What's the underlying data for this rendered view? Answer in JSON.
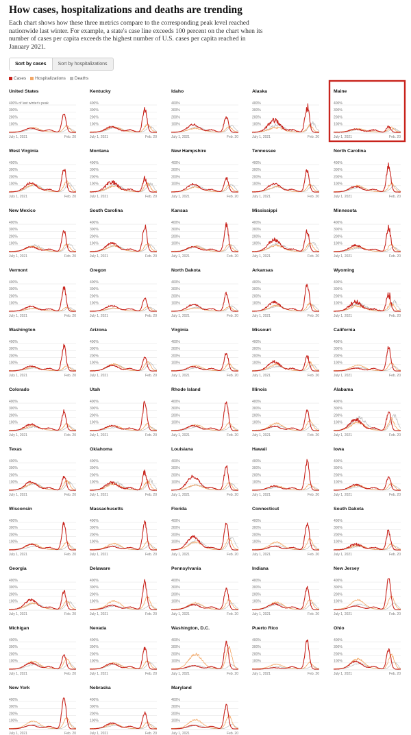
{
  "title": "How cases, hospitalizations and deaths are trending",
  "intro": "Each chart shows how these three metrics compare to the corresponding peak level reached nationwide last winter. For example, a state's case line exceeds 100 percent on the chart when its number of cases per capita exceeds the highest number of U.S. cases per capita reached in January 2021.",
  "sort": {
    "options": [
      "Sort by cases",
      "Sort by hospitalizations"
    ],
    "selected": "Sort by cases"
  },
  "legend": [
    {
      "label": "Cases",
      "color": "#c8231c"
    },
    {
      "label": "Hospitalizations",
      "color": "#f2a766"
    },
    {
      "label": "Deaths",
      "color": "#bbbbbb"
    }
  ],
  "highlight_color": "#c8231c",
  "chart_data": {
    "type": "line",
    "x_start_label": "July 1, 2021",
    "x_end_label": "Feb. 20",
    "y_tick_labels": [
      "400% of last winter's peak",
      "400%",
      "300%",
      "200%",
      "100%"
    ],
    "y_ticks": [
      100,
      200,
      300,
      400
    ],
    "ylim": [
      0,
      450
    ],
    "highlighted_state": "Maine",
    "states": [
      {
        "name": "United States",
        "peak": 270,
        "delta": 60,
        "hosp": 90,
        "deaths": 55,
        "noise": 0.05
      },
      {
        "name": "Kentucky",
        "peak": 330,
        "delta": 80,
        "hosp": 110,
        "deaths": 80,
        "noise": 0.14
      },
      {
        "name": "Idaho",
        "peak": 230,
        "delta": 110,
        "hosp": 75,
        "deaths": 90,
        "noise": 0.12
      },
      {
        "name": "Alaska",
        "peak": 370,
        "delta": 170,
        "hosp": 90,
        "deaths": 130,
        "noise": 0.2
      },
      {
        "name": "Maine",
        "peak": 80,
        "delta": 45,
        "hosp": 60,
        "deaths": 50,
        "noise": 0.2
      },
      {
        "name": "West Virginia",
        "peak": 330,
        "delta": 130,
        "hosp": 140,
        "deaths": 120,
        "noise": 0.12
      },
      {
        "name": "Montana",
        "peak": 190,
        "delta": 140,
        "hosp": 110,
        "deaths": 120,
        "noise": 0.2
      },
      {
        "name": "New Hampshire",
        "peak": 200,
        "delta": 110,
        "hosp": 90,
        "deaths": 100,
        "noise": 0.12
      },
      {
        "name": "Tennessee",
        "peak": 310,
        "delta": 120,
        "hosp": 100,
        "deaths": 90,
        "noise": 0.12
      },
      {
        "name": "North Carolina",
        "peak": 380,
        "delta": 80,
        "hosp": 120,
        "deaths": 80,
        "noise": 0.14
      },
      {
        "name": "New Mexico",
        "peak": 300,
        "delta": 70,
        "hosp": 100,
        "deaths": 110,
        "noise": 0.12
      },
      {
        "name": "South Carolina",
        "peak": 360,
        "delta": 120,
        "hosp": 110,
        "deaths": 100,
        "noise": 0.12
      },
      {
        "name": "Kansas",
        "peak": 390,
        "delta": 70,
        "hosp": 100,
        "deaths": 90,
        "noise": 0.14
      },
      {
        "name": "Mississippi",
        "peak": 280,
        "delta": 170,
        "hosp": 120,
        "deaths": 140,
        "noise": 0.15
      },
      {
        "name": "Minnesota",
        "peak": 330,
        "delta": 90,
        "hosp": 90,
        "deaths": 60,
        "noise": 0.15
      },
      {
        "name": "Vermont",
        "peak": 330,
        "delta": 70,
        "hosp": 50,
        "deaths": 50,
        "noise": 0.12
      },
      {
        "name": "Oregon",
        "peak": 190,
        "delta": 80,
        "hosp": 60,
        "deaths": 50,
        "noise": 0.1
      },
      {
        "name": "North Dakota",
        "peak": 250,
        "delta": 100,
        "hosp": 60,
        "deaths": 70,
        "noise": 0.12
      },
      {
        "name": "Arkansas",
        "peak": 390,
        "delta": 130,
        "hosp": 110,
        "deaths": 90,
        "noise": 0.13
      },
      {
        "name": "Wyoming",
        "peak": 250,
        "delta": 130,
        "hosp": 110,
        "deaths": 130,
        "noise": 0.25
      },
      {
        "name": "Washington",
        "peak": 360,
        "delta": 70,
        "hosp": 70,
        "deaths": 50,
        "noise": 0.12
      },
      {
        "name": "Arizona",
        "peak": 200,
        "delta": 80,
        "hosp": 130,
        "deaths": 110,
        "noise": 0.1
      },
      {
        "name": "Virginia",
        "peak": 260,
        "delta": 60,
        "hosp": 100,
        "deaths": 50,
        "noise": 0.1
      },
      {
        "name": "Missouri",
        "peak": 210,
        "delta": 130,
        "hosp": 120,
        "deaths": 80,
        "noise": 0.15
      },
      {
        "name": "California",
        "peak": 330,
        "delta": 40,
        "hosp": 110,
        "deaths": 60,
        "noise": 0.1
      },
      {
        "name": "Colorado",
        "peak": 270,
        "delta": 90,
        "hosp": 90,
        "deaths": 60,
        "noise": 0.12
      },
      {
        "name": "Utah",
        "peak": 400,
        "delta": 70,
        "hosp": 90,
        "deaths": 50,
        "noise": 0.12
      },
      {
        "name": "Rhode Island",
        "peak": 420,
        "delta": 70,
        "hosp": 110,
        "deaths": 60,
        "noise": 0.1
      },
      {
        "name": "Illinois",
        "peak": 280,
        "delta": 60,
        "hosp": 140,
        "deaths": 80,
        "noise": 0.1
      },
      {
        "name": "Alabama",
        "peak": 270,
        "delta": 160,
        "hosp": 160,
        "deaths": 220,
        "noise": 0.15
      },
      {
        "name": "Texas",
        "peak": 200,
        "delta": 120,
        "hosp": 130,
        "deaths": 110,
        "noise": 0.12
      },
      {
        "name": "Oklahoma",
        "peak": 270,
        "delta": 110,
        "hosp": 120,
        "deaths": 140,
        "noise": 0.2
      },
      {
        "name": "Louisiana",
        "peak": 340,
        "delta": 200,
        "hosp": 100,
        "deaths": 90,
        "noise": 0.12
      },
      {
        "name": "Hawaii",
        "peak": 420,
        "delta": 60,
        "hosp": 80,
        "deaths": 50,
        "noise": 0.12
      },
      {
        "name": "Iowa",
        "peak": 190,
        "delta": 80,
        "hosp": 90,
        "deaths": 60,
        "noise": 0.12
      },
      {
        "name": "Wisconsin",
        "peak": 380,
        "delta": 80,
        "hosp": 110,
        "deaths": 60,
        "noise": 0.1
      },
      {
        "name": "Massachusetts",
        "peak": 390,
        "delta": 50,
        "hosp": 120,
        "deaths": 70,
        "noise": 0.1
      },
      {
        "name": "Florida",
        "peak": 370,
        "delta": 190,
        "hosp": 150,
        "deaths": 170,
        "noise": 0.1
      },
      {
        "name": "Connecticut",
        "peak": 380,
        "delta": 50,
        "hosp": 150,
        "deaths": 70,
        "noise": 0.1
      },
      {
        "name": "South Dakota",
        "peak": 260,
        "delta": 80,
        "hosp": 80,
        "deaths": 60,
        "noise": 0.2
      },
      {
        "name": "Georgia",
        "peak": 260,
        "delta": 140,
        "hosp": 120,
        "deaths": 110,
        "noise": 0.12
      },
      {
        "name": "Delaware",
        "peak": 390,
        "delta": 60,
        "hosp": 170,
        "deaths": 60,
        "noise": 0.1
      },
      {
        "name": "Pennsylvania",
        "peak": 300,
        "delta": 70,
        "hosp": 130,
        "deaths": 90,
        "noise": 0.1
      },
      {
        "name": "Indiana",
        "peak": 320,
        "delta": 80,
        "hosp": 140,
        "deaths": 90,
        "noise": 0.1
      },
      {
        "name": "New Jersey",
        "peak": 450,
        "delta": 50,
        "hosp": 190,
        "deaths": 90,
        "noise": 0.06
      },
      {
        "name": "Michigan",
        "peak": 200,
        "delta": 90,
        "hosp": 150,
        "deaths": 80,
        "noise": 0.1
      },
      {
        "name": "Nevada",
        "peak": 300,
        "delta": 80,
        "hosp": 120,
        "deaths": 90,
        "noise": 0.1
      },
      {
        "name": "Washington, D.C.",
        "peak": 380,
        "delta": 50,
        "hosp": 300,
        "deaths": 60,
        "noise": 0.1
      },
      {
        "name": "Puerto Rico",
        "peak": 400,
        "delta": 20,
        "hosp": 90,
        "deaths": 40,
        "noise": 0.1
      },
      {
        "name": "Ohio",
        "peak": 280,
        "delta": 110,
        "hosp": 200,
        "deaths": 100,
        "noise": 0.1
      },
      {
        "name": "New York",
        "peak": 450,
        "delta": 50,
        "hosp": 150,
        "deaths": 70,
        "noise": 0.06
      },
      {
        "name": "Nebraska",
        "peak": 230,
        "delta": 80,
        "hosp": 90,
        "deaths": 60,
        "noise": 0.1
      },
      {
        "name": "Maryland",
        "peak": 330,
        "delta": 50,
        "hosp": 180,
        "deaths": 60,
        "noise": 0.08
      }
    ]
  }
}
